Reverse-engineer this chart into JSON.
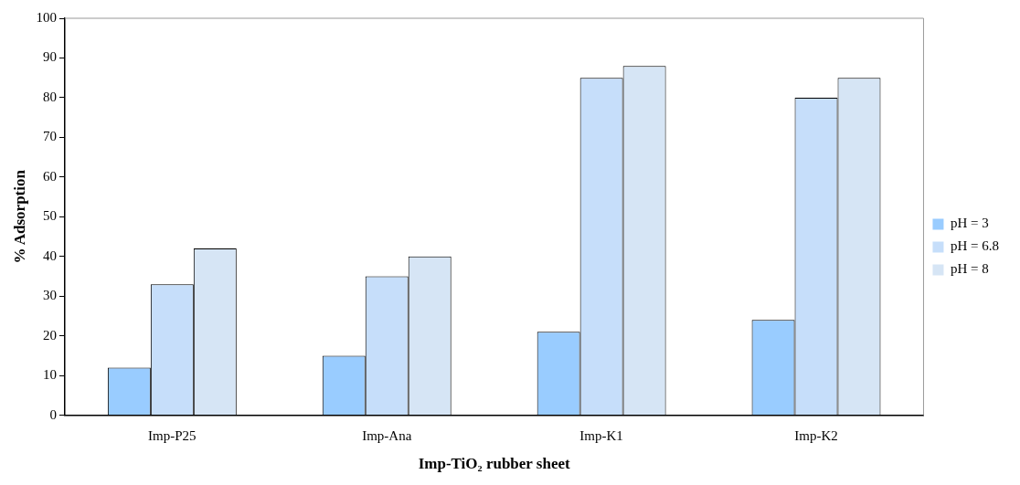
{
  "chart_data": {
    "type": "bar",
    "xlabel": "Imp-TiO₂ rubber sheet",
    "ylabel": "% Adsorption",
    "categories": [
      "Imp-P25",
      "Imp-Ana",
      "Imp-K1",
      "Imp-K2"
    ],
    "series": [
      {
        "name": "pH = 3",
        "color": "#99ccff",
        "values": [
          12,
          15,
          21,
          24
        ]
      },
      {
        "name": "pH = 6.8",
        "color": "#c6defa",
        "values": [
          33,
          35,
          85,
          80
        ]
      },
      {
        "name": "pH = 8",
        "color": "#d6e5f5",
        "values": [
          42,
          40,
          88,
          85
        ]
      }
    ],
    "ylim": [
      0,
      100
    ],
    "yticks": [
      0,
      10,
      20,
      30,
      40,
      50,
      60,
      70,
      80,
      90,
      100
    ],
    "grid": false,
    "legend": "right"
  }
}
